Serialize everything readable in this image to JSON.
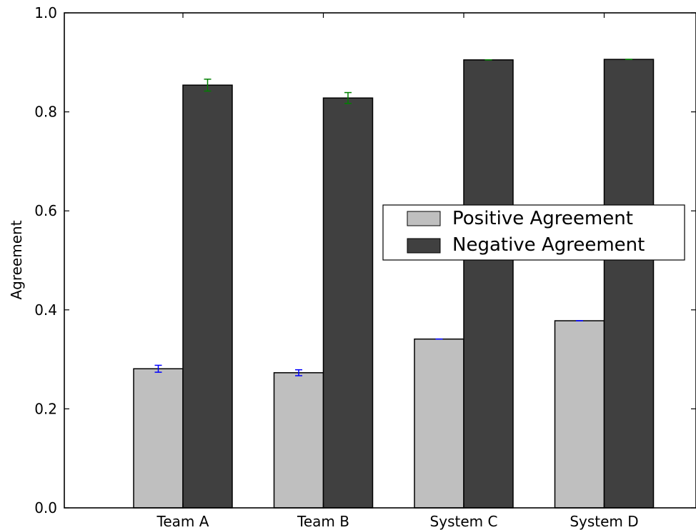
{
  "chart_data": {
    "type": "bar",
    "title": "",
    "xlabel": "",
    "ylabel": "Agreement",
    "ylim": [
      0,
      1.0
    ],
    "yticks": [
      "0.0",
      "0.2",
      "0.4",
      "0.6",
      "0.8",
      "1.0"
    ],
    "categories": [
      "Team A",
      "Team B",
      "System C",
      "System D"
    ],
    "series": [
      {
        "name": "Positive Agreement",
        "color": "#bfbfbf",
        "error_color": "#0000ff",
        "values": [
          0.281,
          0.273,
          0.341,
          0.378
        ],
        "errors": [
          0.007,
          0.006,
          0.0,
          0.0
        ]
      },
      {
        "name": "Negative Agreement",
        "color": "#404040",
        "error_color": "#008000",
        "values": [
          0.854,
          0.828,
          0.905,
          0.906
        ],
        "errors": [
          0.012,
          0.011,
          0.0,
          0.0
        ]
      }
    ],
    "grid": false,
    "legend_position": "center-right"
  }
}
